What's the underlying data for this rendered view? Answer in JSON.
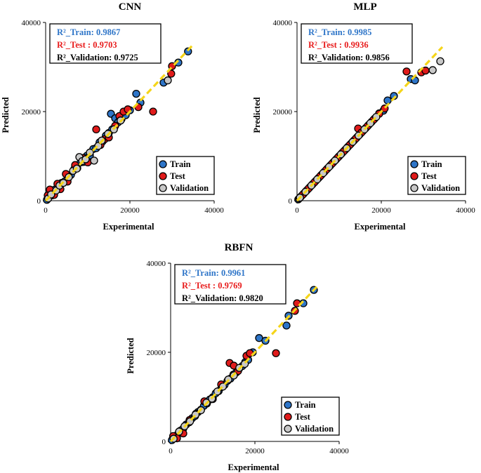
{
  "colors": {
    "train": "#2e75c8",
    "test": "#e01b1b",
    "validation": "#c8c8c8",
    "fit_line": "#f5d51a",
    "train_text": "#2e75c8",
    "test_text": "#e81c1c",
    "validation_text": "#000000"
  },
  "chart_data": [
    {
      "type": "scatter",
      "title": "CNN",
      "xlabel": "Experimental",
      "ylabel": "Predicted",
      "xlim": [
        0,
        40000
      ],
      "ylim": [
        0,
        40000
      ],
      "xticks": [
        "0",
        "20000",
        "40000"
      ],
      "yticks": [
        "0",
        "20000",
        "40000"
      ],
      "legend": {
        "placement": "bottom-right",
        "entries": [
          "Train",
          "Test",
          "Validation"
        ]
      },
      "r2": {
        "train": "R²_Train: 0.9867",
        "test": "R²_Test : 0.9703",
        "validation": "R²_Validation: 0.9725"
      },
      "fit_line": [
        [
          0,
          0
        ],
        [
          35000,
          35000
        ]
      ],
      "series": [
        {
          "name": "Train",
          "points": [
            [
              300,
              200
            ],
            [
              800,
              900
            ],
            [
              1500,
              1200
            ],
            [
              2200,
              2500
            ],
            [
              3000,
              2800
            ],
            [
              3800,
              4000
            ],
            [
              4500,
              4300
            ],
            [
              5300,
              5600
            ],
            [
              6000,
              5800
            ],
            [
              6800,
              7100
            ],
            [
              7500,
              7300
            ],
            [
              8300,
              8600
            ],
            [
              9000,
              8700
            ],
            [
              9800,
              10100
            ],
            [
              10500,
              10200
            ],
            [
              11300,
              11600
            ],
            [
              12000,
              11800
            ],
            [
              12800,
              13100
            ],
            [
              13500,
              13300
            ],
            [
              14300,
              14600
            ],
            [
              15000,
              15200
            ],
            [
              15800,
              16000
            ],
            [
              15500,
              19500
            ],
            [
              16500,
              18500
            ],
            [
              17200,
              17600
            ],
            [
              18000,
              18300
            ],
            [
              19000,
              19200
            ],
            [
              20000,
              20300
            ],
            [
              21500,
              24000
            ],
            [
              22500,
              22000
            ],
            [
              28000,
              26500
            ],
            [
              31500,
              31000
            ],
            [
              33800,
              33500
            ]
          ]
        },
        {
          "name": "Test",
          "points": [
            [
              500,
              1200
            ],
            [
              1000,
              2500
            ],
            [
              2000,
              1300
            ],
            [
              2800,
              3800
            ],
            [
              3500,
              2600
            ],
            [
              4800,
              6000
            ],
            [
              5200,
              4300
            ],
            [
              7000,
              8000
            ],
            [
              9000,
              9600
            ],
            [
              10000,
              8600
            ],
            [
              12000,
              16000
            ],
            [
              13000,
              12500
            ],
            [
              14000,
              13800
            ],
            [
              15000,
              14200
            ],
            [
              16500,
              16800
            ],
            [
              17500,
              19000
            ],
            [
              18500,
              20000
            ],
            [
              19500,
              20500
            ],
            [
              22000,
              21000
            ],
            [
              25500,
              20000
            ],
            [
              29800,
              28500
            ],
            [
              30000,
              30200
            ]
          ]
        },
        {
          "name": "Validation",
          "points": [
            [
              600,
              500
            ],
            [
              1300,
              1400
            ],
            [
              2500,
              2300
            ],
            [
              3300,
              3400
            ],
            [
              4200,
              4000
            ],
            [
              5500,
              5300
            ],
            [
              6500,
              6700
            ],
            [
              7400,
              7200
            ],
            [
              8000,
              9800
            ],
            [
              8700,
              8900
            ],
            [
              9500,
              9300
            ],
            [
              10500,
              10800
            ],
            [
              11500,
              9000
            ],
            [
              12500,
              12300
            ],
            [
              13300,
              13500
            ],
            [
              14800,
              15000
            ],
            [
              16200,
              16000
            ],
            [
              17800,
              18000
            ],
            [
              29000,
              27000
            ]
          ]
        }
      ]
    },
    {
      "type": "scatter",
      "title": "MLP",
      "xlabel": "Experimental",
      "ylabel": "Predicted",
      "xlim": [
        0,
        40000
      ],
      "ylim": [
        0,
        40000
      ],
      "xticks": [
        "0",
        "20000",
        "40000"
      ],
      "yticks": [
        "0",
        "20000",
        "40000"
      ],
      "legend": {
        "placement": "bottom-right",
        "entries": [
          "Train",
          "Test",
          "Validation"
        ]
      },
      "r2": {
        "train": "R²_Train: 0.9985",
        "test": "R²_Test : 0.9936",
        "validation": "R²_Validation: 0.9856"
      },
      "fit_line": [
        [
          0,
          0
        ],
        [
          34500,
          34500
        ]
      ],
      "series": [
        {
          "name": "Train",
          "points": [
            [
              300,
              300
            ],
            [
              900,
              900
            ],
            [
              1600,
              1600
            ],
            [
              2300,
              2300
            ],
            [
              3000,
              3000
            ],
            [
              3700,
              3700
            ],
            [
              4400,
              4400
            ],
            [
              5100,
              5100
            ],
            [
              5800,
              5800
            ],
            [
              6500,
              6500
            ],
            [
              7200,
              7200
            ],
            [
              7900,
              7900
            ],
            [
              8600,
              8600
            ],
            [
              9300,
              9300
            ],
            [
              10000,
              10000
            ],
            [
              10700,
              10700
            ],
            [
              11400,
              11400
            ],
            [
              12100,
              12100
            ],
            [
              12800,
              12800
            ],
            [
              13500,
              13500
            ],
            [
              14200,
              14200
            ],
            [
              14900,
              14900
            ],
            [
              15600,
              15600
            ],
            [
              16300,
              16300
            ],
            [
              17000,
              17000
            ],
            [
              17700,
              17700
            ],
            [
              18400,
              18400
            ],
            [
              19500,
              19600
            ],
            [
              20500,
              20200
            ],
            [
              21500,
              22500
            ],
            [
              23000,
              23500
            ],
            [
              27000,
              27300
            ],
            [
              28000,
              27000
            ]
          ]
        },
        {
          "name": "Test",
          "points": [
            [
              500,
              500
            ],
            [
              1300,
              1300
            ],
            [
              2700,
              2700
            ],
            [
              4100,
              4100
            ],
            [
              5500,
              5500
            ],
            [
              6900,
              6900
            ],
            [
              8300,
              8300
            ],
            [
              9700,
              9700
            ],
            [
              11100,
              11100
            ],
            [
              12500,
              12500
            ],
            [
              13900,
              13900
            ],
            [
              14500,
              16200
            ],
            [
              15300,
              15300
            ],
            [
              16700,
              16700
            ],
            [
              18100,
              18100
            ],
            [
              19500,
              19500
            ],
            [
              20800,
              20700
            ],
            [
              26000,
              29000
            ],
            [
              29500,
              28800
            ],
            [
              30500,
              29200
            ]
          ]
        },
        {
          "name": "Validation",
          "points": [
            [
              700,
              700
            ],
            [
              2000,
              2000
            ],
            [
              3400,
              3400
            ],
            [
              4800,
              4800
            ],
            [
              6200,
              6200
            ],
            [
              7600,
              7600
            ],
            [
              9000,
              9000
            ],
            [
              10400,
              10400
            ],
            [
              11800,
              11800
            ],
            [
              13200,
              13200
            ],
            [
              14600,
              14600
            ],
            [
              16000,
              16000
            ],
            [
              17400,
              17400
            ],
            [
              18800,
              18800
            ],
            [
              32200,
              29300
            ],
            [
              34000,
              31300
            ]
          ]
        }
      ]
    },
    {
      "type": "scatter",
      "title": "RBFN",
      "xlabel": "Experimental",
      "ylabel": "Predicted",
      "xlim": [
        0,
        40000
      ],
      "ylim": [
        0,
        40000
      ],
      "xticks": [
        "0",
        "20000",
        "40000"
      ],
      "yticks": [
        "0",
        "20000",
        "40000"
      ],
      "legend": {
        "placement": "bottom-right",
        "entries": [
          "Train",
          "Test",
          "Validation"
        ]
      },
      "r2": {
        "train": "R²_Train: 0.9961",
        "test": "R²_Test : 0.9769",
        "validation": "R²_Validation: 0.9820"
      },
      "fit_line": [
        [
          0,
          0
        ],
        [
          35000,
          35000
        ]
      ],
      "series": [
        {
          "name": "Train",
          "points": [
            [
              300,
              300
            ],
            [
              900,
              1000
            ],
            [
              1600,
              1500
            ],
            [
              2300,
              2400
            ],
            [
              3000,
              2900
            ],
            [
              3700,
              3800
            ],
            [
              4400,
              4300
            ],
            [
              5100,
              5200
            ],
            [
              5800,
              5700
            ],
            [
              6500,
              6600
            ],
            [
              7200,
              7100
            ],
            [
              7900,
              8000
            ],
            [
              8600,
              8500
            ],
            [
              9300,
              9400
            ],
            [
              10000,
              9900
            ],
            [
              10700,
              10800
            ],
            [
              11400,
              11300
            ],
            [
              12100,
              12200
            ],
            [
              12800,
              12700
            ],
            [
              13500,
              13600
            ],
            [
              14200,
              14100
            ],
            [
              14900,
              15000
            ],
            [
              15600,
              15500
            ],
            [
              16300,
              16400
            ],
            [
              17000,
              16900
            ],
            [
              17700,
              17800
            ],
            [
              18400,
              18300
            ],
            [
              19500,
              20000
            ],
            [
              21000,
              23200
            ],
            [
              22500,
              22600
            ],
            [
              27500,
              26000
            ],
            [
              28000,
              28200
            ],
            [
              31500,
              31000
            ],
            [
              34000,
              34000
            ]
          ]
        },
        {
          "name": "Test",
          "points": [
            [
              600,
              1200
            ],
            [
              1500,
              700
            ],
            [
              3000,
              1800
            ],
            [
              4500,
              4800
            ],
            [
              6000,
              6200
            ],
            [
              8000,
              9000
            ],
            [
              10000,
              9500
            ],
            [
              12000,
              12800
            ],
            [
              14000,
              17600
            ],
            [
              15000,
              17000
            ],
            [
              16000,
              15800
            ],
            [
              18000,
              19200
            ],
            [
              18800,
              19800
            ],
            [
              25000,
              19800
            ],
            [
              29500,
              29300
            ],
            [
              30000,
              31000
            ]
          ]
        },
        {
          "name": "Validation",
          "points": [
            [
              700,
              600
            ],
            [
              2000,
              2200
            ],
            [
              3300,
              3400
            ],
            [
              4600,
              4500
            ],
            [
              5900,
              6000
            ],
            [
              7200,
              7000
            ],
            [
              8500,
              8700
            ],
            [
              9800,
              9600
            ],
            [
              11100,
              11200
            ],
            [
              12400,
              12300
            ],
            [
              13700,
              13900
            ],
            [
              15000,
              14800
            ],
            [
              16300,
              16500
            ],
            [
              17600,
              17400
            ]
          ]
        }
      ]
    }
  ]
}
